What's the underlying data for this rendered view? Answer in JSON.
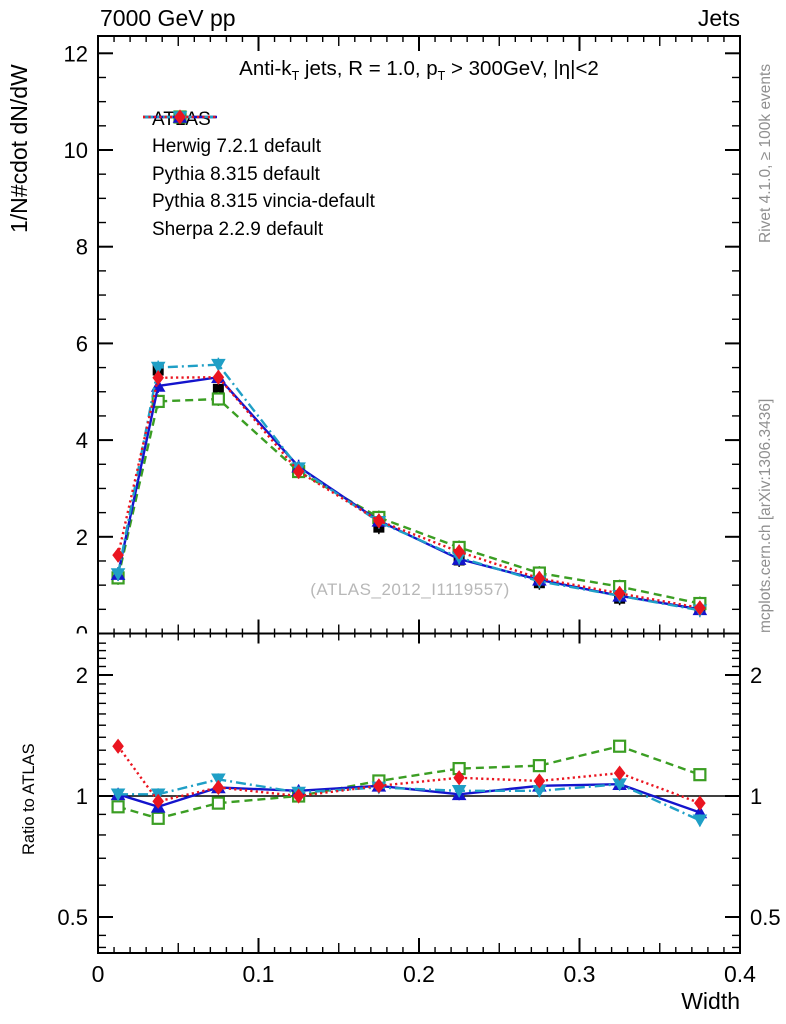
{
  "header": {
    "left": "7000 GeV pp",
    "right": "Jets"
  },
  "title": "Anti-k_T jets, R = 1.0, p_T > 300GeV, |η|<2",
  "title_segments": [
    {
      "text": "Anti-k"
    },
    {
      "text": "T",
      "sub": true
    },
    {
      "text": " jets, R = 1.0, p"
    },
    {
      "text": "T",
      "sub": true
    },
    {
      "text": " > 300GeV, |η|<2"
    }
  ],
  "watermark": "(ATLAS_2012_I1119557)",
  "side_notes": {
    "rivet": "Rivet 4.1.0, ≥ 100k events",
    "mcplots": "mcplots.cern.ch [arXiv:1306.3436]"
  },
  "axes": {
    "y_label": "1/N#cdot dN/dW",
    "x_label": "Width",
    "ratio_label": "Ratio to ATLAS",
    "x_ticks": [
      0,
      0.1,
      0.2,
      0.3,
      0.4
    ],
    "y_ticks": [
      0,
      2,
      4,
      6,
      8,
      10,
      12
    ],
    "ratio_ticks": [
      0.5,
      1,
      2
    ],
    "x_range": [
      0,
      0.4
    ],
    "y_range": [
      0,
      12.36
    ],
    "ratio_range": [
      0.41,
      2.54
    ],
    "ratio_scale": "log"
  },
  "chart_data": {
    "type": "line",
    "title": "Anti-k_T jets, R = 1.0, p_T > 300GeV, |η|<2",
    "xlabel": "Width",
    "ylabel": "1/N#cdot dN/dW",
    "ratio_ylabel": "Ratio to ATLAS",
    "xlim": [
      0,
      0.4
    ],
    "ylim": [
      0,
      12.36
    ],
    "ratio_ylim": [
      0.41,
      2.54
    ],
    "legend_position": "top-left-inside",
    "grid": false,
    "x": [
      0.0125,
      0.0375,
      0.075,
      0.125,
      0.175,
      0.225,
      0.275,
      0.325,
      0.375
    ],
    "series": [
      {
        "name": "ATLAS",
        "color": "#000000",
        "marker": "square-filled",
        "line_style": "none",
        "values": [
          1.22,
          5.45,
          5.05,
          3.35,
          2.2,
          1.52,
          1.05,
          0.73,
          0.55
        ],
        "ratio_to_atlas": [
          1,
          1,
          1,
          1,
          1,
          1,
          1,
          1,
          1
        ]
      },
      {
        "name": "Herwig 7.2.1 default",
        "color": "#3b9e23",
        "marker": "square-open",
        "line_style": "dashed",
        "values": [
          1.15,
          4.8,
          4.85,
          3.35,
          2.4,
          1.78,
          1.25,
          0.97,
          0.62
        ],
        "ratio_to_atlas": [
          0.94,
          0.88,
          0.96,
          1.0,
          1.09,
          1.17,
          1.19,
          1.33,
          1.13
        ]
      },
      {
        "name": "Pythia 8.315 default",
        "color": "#1414cc",
        "marker": "triangle-up",
        "line_style": "solid",
        "values": [
          1.23,
          5.12,
          5.3,
          3.45,
          2.33,
          1.54,
          1.11,
          0.78,
          0.5
        ],
        "ratio_to_atlas": [
          1.01,
          0.94,
          1.05,
          1.03,
          1.06,
          1.01,
          1.06,
          1.07,
          0.91
        ]
      },
      {
        "name": "Pythia 8.315 vincia-default",
        "color": "#1f9fc6",
        "marker": "triangle-down",
        "line_style": "dashdot",
        "values": [
          1.23,
          5.5,
          5.56,
          3.42,
          2.31,
          1.57,
          1.08,
          0.78,
          0.48
        ],
        "ratio_to_atlas": [
          1.01,
          1.01,
          1.1,
          1.02,
          1.05,
          1.03,
          1.03,
          1.07,
          0.87
        ]
      },
      {
        "name": "Sherpa 2.2.9 default",
        "color": "#ea1520",
        "marker": "diamond",
        "line_style": "dotted",
        "values": [
          1.62,
          5.29,
          5.3,
          3.35,
          2.33,
          1.69,
          1.14,
          0.83,
          0.53
        ],
        "ratio_to_atlas": [
          1.33,
          0.97,
          1.05,
          1.0,
          1.06,
          1.11,
          1.09,
          1.14,
          0.96
        ]
      }
    ]
  }
}
